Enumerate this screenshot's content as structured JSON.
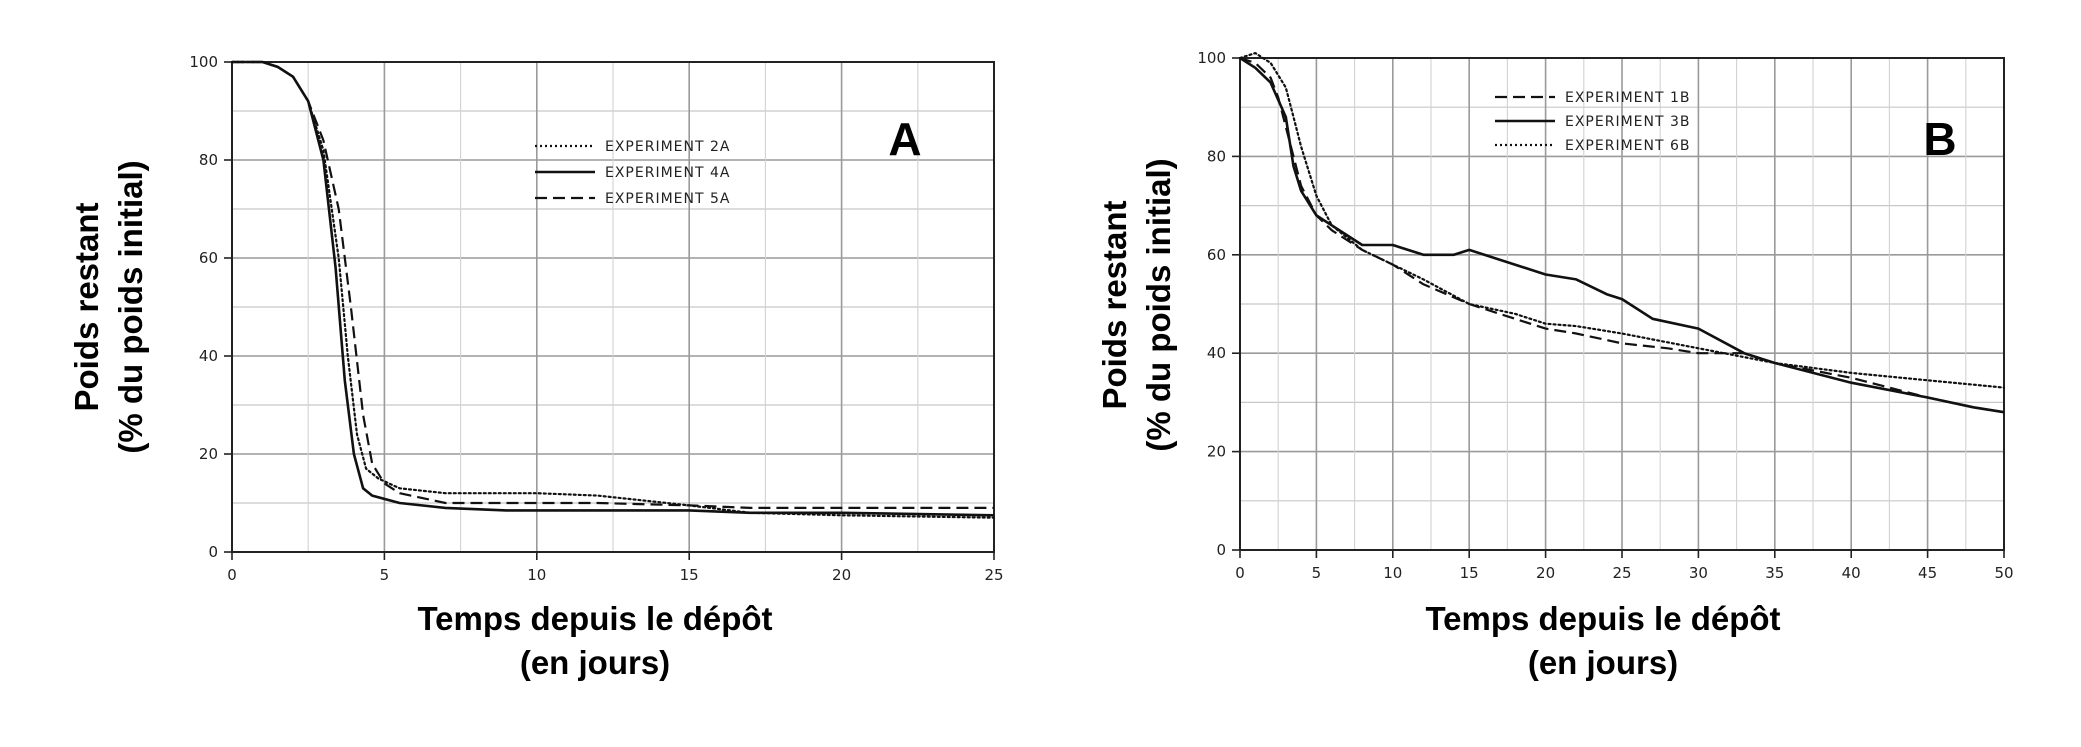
{
  "chart_data": [
    {
      "type": "line",
      "panel_label": "A",
      "xlabel_lines": [
        "Temps depuis le dépôt",
        "(en jours)"
      ],
      "ylabel_lines": [
        "Poids restant",
        "(% du poids initial)"
      ],
      "xlim": [
        0,
        25
      ],
      "ylim": [
        0,
        100
      ],
      "xticks": [
        0,
        5,
        10,
        15,
        20,
        25
      ],
      "yticks": [
        0,
        20,
        40,
        60,
        80,
        100
      ],
      "grid": true,
      "legend_position": "top-right",
      "series": [
        {
          "name": "EXPERIMENT 2A",
          "style": "dotted",
          "x": [
            0,
            1,
            1.5,
            2,
            2.5,
            3,
            3.5,
            3.8,
            4.1,
            4.4,
            4.8,
            5.5,
            7,
            9,
            10,
            12,
            15,
            17,
            20,
            25
          ],
          "y": [
            100,
            100,
            99,
            97,
            92,
            82,
            60,
            40,
            24,
            17,
            15,
            13,
            12,
            12,
            12,
            11.5,
            9.5,
            8,
            7.5,
            7
          ]
        },
        {
          "name": "EXPERIMENT 4A",
          "style": "solid",
          "x": [
            0,
            1,
            1.5,
            2,
            2.5,
            3,
            3.4,
            3.7,
            4.0,
            4.3,
            4.6,
            5.5,
            7,
            9,
            10,
            12,
            15,
            17,
            20,
            25
          ],
          "y": [
            100,
            100,
            99,
            97,
            92,
            80,
            58,
            35,
            20,
            13,
            11.5,
            10,
            9,
            8.5,
            8.5,
            8.5,
            8.5,
            8,
            8,
            7.5
          ]
        },
        {
          "name": "EXPERIMENT 5A",
          "style": "dashed",
          "x": [
            0,
            1,
            1.5,
            2,
            2.5,
            3,
            3.5,
            3.9,
            4.3,
            4.6,
            5,
            5.5,
            7,
            9,
            10,
            12,
            15,
            17,
            20,
            25
          ],
          "y": [
            100,
            100,
            99,
            97,
            92,
            84,
            70,
            50,
            28,
            18,
            14,
            12,
            10,
            10,
            10,
            10,
            9.5,
            9,
            9,
            9
          ]
        }
      ]
    },
    {
      "type": "line",
      "panel_label": "B",
      "xlabel_lines": [
        "Temps depuis le dépôt",
        "(en jours)"
      ],
      "ylabel_lines": [
        "Poids restant",
        "(% du poids initial)"
      ],
      "xlim": [
        0,
        50
      ],
      "ylim": [
        0,
        100
      ],
      "xticks": [
        0,
        5,
        10,
        15,
        20,
        25,
        30,
        35,
        40,
        45,
        50
      ],
      "yticks": [
        0,
        20,
        40,
        60,
        80,
        100
      ],
      "grid": true,
      "legend_position": "top-center",
      "series": [
        {
          "name": "EXPERIMENT 1B",
          "style": "dashed",
          "x": [
            0,
            1,
            2,
            2.5,
            3,
            3.5,
            4,
            5,
            6,
            8,
            10,
            12,
            15,
            18,
            20,
            22,
            25,
            28,
            30,
            33,
            35,
            40,
            45,
            48,
            50
          ],
          "y": [
            100,
            99,
            96,
            92,
            86,
            80,
            74,
            68,
            65,
            61,
            58,
            54,
            50,
            47,
            45,
            44,
            42,
            41,
            40,
            40,
            38,
            35,
            31,
            29,
            28
          ]
        },
        {
          "name": "EXPERIMENT 3B",
          "style": "solid",
          "x": [
            0,
            1,
            2,
            3,
            3.5,
            4,
            5,
            6,
            8,
            10,
            12,
            14,
            15,
            17,
            20,
            22,
            24,
            25,
            27,
            30,
            33,
            35,
            40,
            45,
            48,
            50
          ],
          "y": [
            100,
            98,
            95,
            88,
            78,
            73,
            68,
            66,
            62,
            62,
            60,
            60,
            61,
            59,
            56,
            55,
            52,
            51,
            47,
            45,
            40,
            38,
            34,
            31,
            29,
            28
          ]
        },
        {
          "name": "EXPERIMENT 6B",
          "style": "dotted",
          "x": [
            0,
            1,
            2,
            3,
            3.5,
            4,
            5,
            6,
            8,
            10,
            12,
            15,
            18,
            20,
            22,
            25,
            30,
            35,
            40,
            45,
            50
          ],
          "y": [
            100,
            101,
            99,
            94,
            88,
            82,
            72,
            66,
            61,
            58,
            55,
            50,
            48,
            46,
            45.5,
            44,
            41,
            38,
            36,
            34.5,
            33
          ]
        }
      ]
    }
  ]
}
